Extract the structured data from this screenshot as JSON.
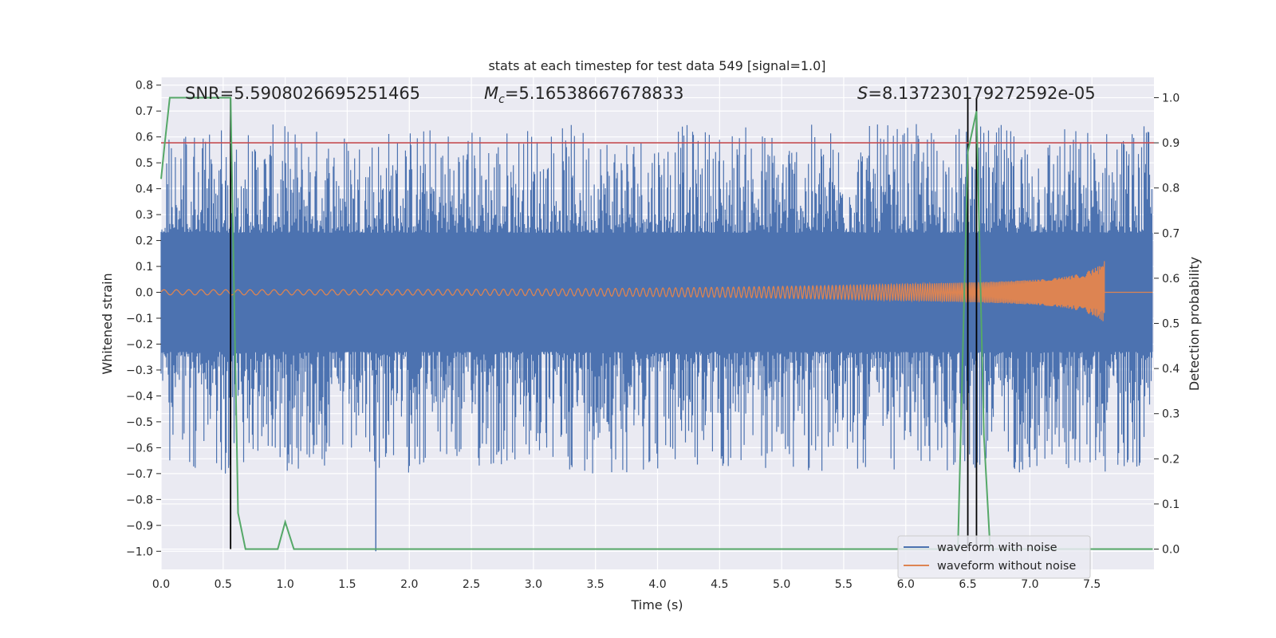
{
  "chart_data": {
    "type": "line",
    "title": "stats at each timestep for test data 549 [signal=1.0]",
    "xlabel": "Time (s)",
    "ylabel": "Whitened strain",
    "y2label": "Detection probability",
    "xlim": [
      0.0,
      8.0
    ],
    "ylim": [
      -1.07,
      0.83
    ],
    "y2lim": [
      -0.045,
      1.045
    ],
    "xticks": [
      "0.0",
      "0.5",
      "1.0",
      "1.5",
      "2.0",
      "2.5",
      "3.0",
      "3.5",
      "4.0",
      "4.5",
      "5.0",
      "5.5",
      "6.0",
      "6.5",
      "7.0",
      "7.5"
    ],
    "yticks": [
      "0.8",
      "0.7",
      "0.6",
      "0.5",
      "0.4",
      "0.3",
      "0.2",
      "0.1",
      "0.0",
      "−0.1",
      "−0.2",
      "−0.3",
      "−0.4",
      "−0.5",
      "−0.6",
      "−0.7",
      "−0.8",
      "−0.9",
      "−1.0"
    ],
    "y2ticks": [
      "0.0",
      "0.1",
      "0.2",
      "0.3",
      "0.4",
      "0.5",
      "0.6",
      "0.7",
      "0.8",
      "0.9",
      "1.0"
    ],
    "annotations": {
      "snr": "SNR=5.5908026695251465",
      "mc_symbol": "M",
      "mc_subscript": "c",
      "mc_value": "=5.16538667678833",
      "s_symbol": "S",
      "s_value": "=8.137230179272592e-05"
    },
    "threshold": {
      "y2": 0.9,
      "color": "#c44e52"
    },
    "vertical_markers_s": [
      0.56,
      6.5,
      6.57
    ],
    "series": [
      {
        "name": "waveform with noise",
        "color": "#4c72b0",
        "axis": "left",
        "envelope_base": 0.23,
        "envelope_peak": 0.65,
        "notable_spike": {
          "t": 1.73,
          "y": -1.0
        }
      },
      {
        "name": "waveform without noise",
        "color": "#dd8452",
        "axis": "left",
        "chirp_start_amp": 0.01,
        "chirp_end_t": 7.6,
        "chirp_end_amp": 0.12
      },
      {
        "name": "detection probability",
        "color": "#55a868",
        "axis": "right",
        "t": [
          0.0,
          0.03,
          0.07,
          0.14,
          0.55,
          0.56,
          0.62,
          0.68,
          0.8,
          0.94,
          1.0,
          1.07,
          1.13,
          6.42,
          6.5,
          6.57,
          6.63,
          6.68,
          7.99
        ],
        "p": [
          0.82,
          0.9,
          1.0,
          1.0,
          1.0,
          1.0,
          0.08,
          0.0,
          0.0,
          0.0,
          0.06,
          0.0,
          0.0,
          0.0,
          0.88,
          0.97,
          0.25,
          0.0,
          0.0
        ]
      }
    ],
    "legend": {
      "position": "lower-right",
      "entries": [
        {
          "label": "waveform with noise",
          "color": "#4c72b0"
        },
        {
          "label": "waveform without noise",
          "color": "#dd8452"
        }
      ]
    },
    "grid": true,
    "colors": {
      "plot_bg": "#eaeaf2",
      "grid": "#ffffff",
      "marker": "#000000"
    }
  }
}
